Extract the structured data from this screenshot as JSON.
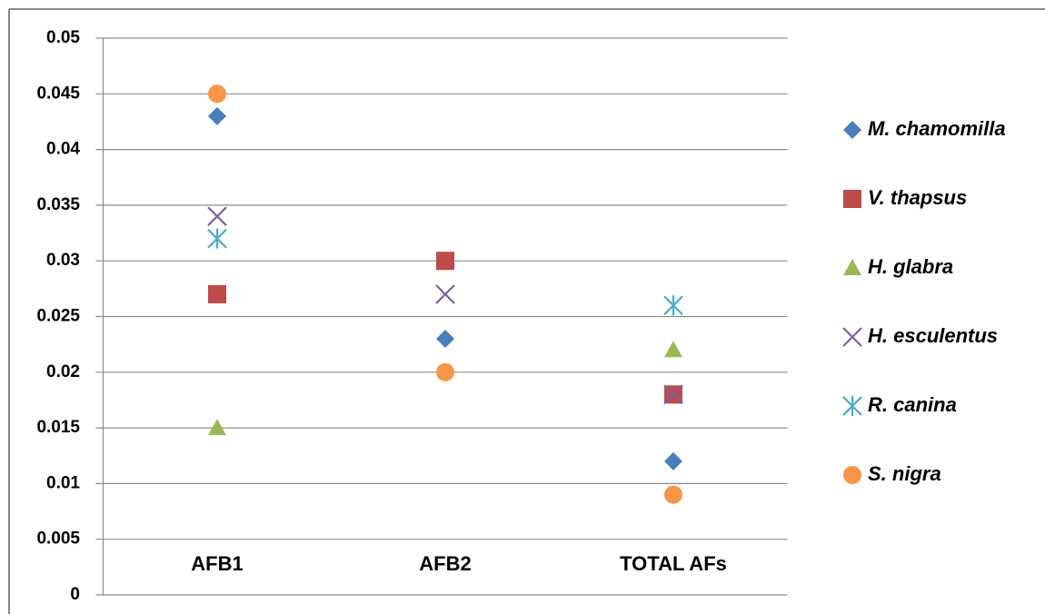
{
  "chart_data": {
    "type": "scatter",
    "categories": [
      "AFB1",
      "AFB2",
      "TOTAL AFs"
    ],
    "series": [
      {
        "name": "M. chamomilla",
        "color": "#4a7ebb",
        "marker": "diamond",
        "values": [
          0.043,
          0.023,
          0.012
        ]
      },
      {
        "name": "V. thapsus",
        "color": "#be4b48",
        "marker": "square",
        "values": [
          0.027,
          0.03,
          0.018
        ]
      },
      {
        "name": "H. glabra",
        "color": "#98b954",
        "marker": "triangle",
        "values": [
          0.015,
          null,
          0.022
        ]
      },
      {
        "name": "H. esculentus",
        "color": "#7d60a0",
        "marker": "x",
        "values": [
          0.034,
          0.027,
          0.018
        ]
      },
      {
        "name": "R. canina",
        "color": "#4bacc6",
        "marker": "star",
        "values": [
          0.032,
          null,
          0.026
        ]
      },
      {
        "name": "S. nigra",
        "color": "#f79646",
        "marker": "circle",
        "values": [
          0.045,
          0.02,
          0.009
        ]
      }
    ],
    "ylim": [
      0,
      0.05
    ],
    "yticks": [
      0,
      0.005,
      0.01,
      0.015,
      0.02,
      0.025,
      0.03,
      0.035,
      0.04,
      0.045,
      0.05
    ],
    "grid": true,
    "legend": "right"
  }
}
